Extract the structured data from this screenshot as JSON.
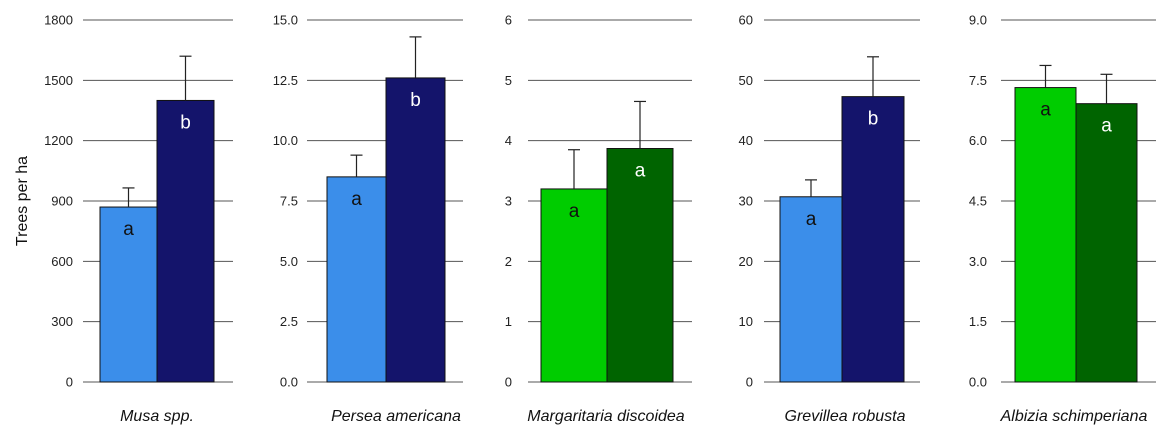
{
  "chart_data": [
    {
      "type": "bar",
      "xlabel": "Musa spp.",
      "ylabel": "Trees per ha",
      "ylim": [
        0,
        1800
      ],
      "ticks": [
        "0",
        "300",
        "600",
        "900",
        "1200",
        "1500",
        "1800"
      ],
      "grid": true,
      "bars": [
        {
          "value": 870,
          "error": 95,
          "label": "a",
          "color": "#3b8eea",
          "label_color": "#111111"
        },
        {
          "value": 1400,
          "error": 220,
          "label": "b",
          "color": "#14146b",
          "label_color": "#ffffff"
        }
      ]
    },
    {
      "type": "bar",
      "xlabel": "Persea americana",
      "ylabel": "",
      "ylim": [
        0,
        15
      ],
      "ticks": [
        "0.0",
        "2.5",
        "5.0",
        "7.5",
        "10.0",
        "12.5",
        "15.0"
      ],
      "grid": true,
      "bars": [
        {
          "value": 8.5,
          "error": 0.9,
          "label": "a",
          "color": "#3b8eea",
          "label_color": "#111111"
        },
        {
          "value": 12.6,
          "error": 1.7,
          "label": "b",
          "color": "#14146b",
          "label_color": "#ffffff"
        }
      ]
    },
    {
      "type": "bar",
      "xlabel": "Margaritaria discoidea",
      "ylabel": "",
      "ylim": [
        0,
        6
      ],
      "ticks": [
        "0",
        "1",
        "2",
        "3",
        "4",
        "5",
        "6"
      ],
      "grid": true,
      "bars": [
        {
          "value": 3.2,
          "error": 0.65,
          "label": "a",
          "color": "#00cc00",
          "label_color": "#111111"
        },
        {
          "value": 3.87,
          "error": 0.78,
          "label": "a",
          "color": "#006400",
          "label_color": "#ffffff"
        }
      ]
    },
    {
      "type": "bar",
      "xlabel": "Grevillea robusta",
      "ylabel": "",
      "ylim": [
        0,
        60
      ],
      "ticks": [
        "0",
        "10",
        "20",
        "30",
        "40",
        "50",
        "60"
      ],
      "grid": true,
      "bars": [
        {
          "value": 30.7,
          "error": 2.8,
          "label": "a",
          "color": "#3b8eea",
          "label_color": "#111111"
        },
        {
          "value": 47.3,
          "error": 6.6,
          "label": "b",
          "color": "#14146b",
          "label_color": "#ffffff"
        }
      ]
    },
    {
      "type": "bar",
      "xlabel": "Albizia schimperiana",
      "ylabel": "",
      "ylim": [
        0,
        9
      ],
      "ticks": [
        "0.0",
        "1.5",
        "3.0",
        "4.5",
        "6.0",
        "7.5",
        "9.0"
      ],
      "grid": true,
      "bars": [
        {
          "value": 7.32,
          "error": 0.55,
          "label": "a",
          "color": "#00cc00",
          "label_color": "#111111"
        },
        {
          "value": 6.92,
          "error": 0.73,
          "label": "a",
          "color": "#006400",
          "label_color": "#ffffff"
        }
      ]
    }
  ]
}
